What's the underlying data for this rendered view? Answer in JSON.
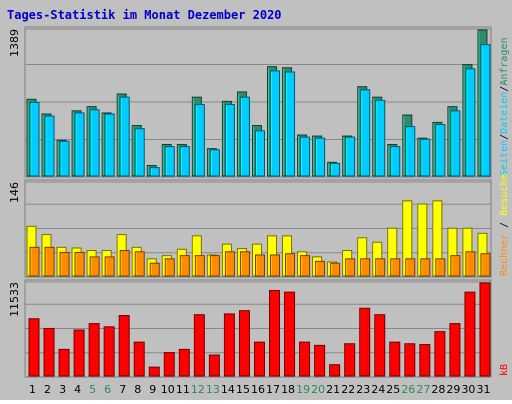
{
  "chart_data": {
    "type": "bar",
    "title": "Tages-Statistik im Monat Dezember 2020",
    "categories": [
      "1",
      "2",
      "3",
      "4",
      "5",
      "6",
      "7",
      "8",
      "9",
      "10",
      "11",
      "12",
      "13",
      "14",
      "15",
      "16",
      "17",
      "18",
      "19",
      "20",
      "21",
      "22",
      "23",
      "24",
      "25",
      "26",
      "27",
      "28",
      "29",
      "30",
      "31"
    ],
    "weekend_days": [
      5,
      6,
      12,
      13,
      19,
      20,
      26,
      27
    ],
    "panels": [
      {
        "ymax_label": "1389",
        "ymax": 1389,
        "series": [
          {
            "name": "Anfragen",
            "color": "#2e8b6e",
            "values": [
              730,
              590,
              340,
              620,
              660,
              600,
              780,
              480,
              100,
              300,
              300,
              750,
              260,
              710,
              800,
              480,
              1040,
              1030,
              390,
              380,
              130,
              380,
              850,
              750,
              300,
              580,
              360,
              510,
              660,
              1060,
              1389
            ]
          },
          {
            "name": "Dateien",
            "color": "#00ccff",
            "values": [
              700,
              570,
              330,
              600,
              630,
              590,
              750,
              450,
              80,
              280,
              280,
              680,
              250,
              680,
              750,
              430,
              1000,
              990,
              370,
              360,
              120,
              370,
              820,
              720,
              280,
              470,
              350,
              490,
              620,
              1020,
              1250
            ]
          }
        ],
        "separator": "/",
        "extra_label": {
          "text": "Seiten",
          "color": "#00ccff"
        }
      },
      {
        "ymax_label": "146",
        "ymax": 146,
        "series": [
          {
            "name": "Besuche",
            "color": "#ffff00",
            "values": [
              78,
              65,
              45,
              44,
              40,
              40,
              65,
              45,
              27,
              32,
              42,
              63,
              33,
              50,
              43,
              50,
              63,
              63,
              38,
              30,
              22,
              40,
              60,
              53,
              75,
              118,
              113,
              118,
              75,
              75,
              67
            ]
          },
          {
            "name": "Rechner",
            "color": "#ff8c00",
            "values": [
              45,
              45,
              37,
              37,
              30,
              30,
              40,
              38,
              20,
              27,
              32,
              32,
              32,
              38,
              38,
              33,
              33,
              35,
              32,
              23,
              20,
              27,
              27,
              27,
              27,
              27,
              27,
              27,
              32,
              38,
              35
            ]
          }
        ],
        "separator": "/"
      },
      {
        "ymax_label": "11533",
        "ymax": 11533,
        "series": [
          {
            "name": "kB",
            "color": "#ff0000",
            "values": [
              7100,
              5900,
              3300,
              5700,
              6500,
              6100,
              7500,
              4200,
              1100,
              2900,
              3300,
              7600,
              2600,
              7700,
              8100,
              4200,
              10600,
              10400,
              4200,
              3800,
              1400,
              4000,
              8400,
              7600,
              4200,
              4000,
              3900,
              5500,
              6500,
              10400,
              11533
            ]
          }
        ],
        "separator": ""
      }
    ]
  },
  "colors": {
    "background": "#c0c0c0",
    "gridline": "#888888",
    "title": "#0000cc",
    "weekday_label": "#000000",
    "weekend_label": "#2e8b57",
    "side_anfragen": "#2e8b6e",
    "side_dateien": "#00ccff",
    "side_besuche": "#ffff00",
    "side_rechner": "#ff8c00",
    "side_kb": "#ff0000"
  }
}
